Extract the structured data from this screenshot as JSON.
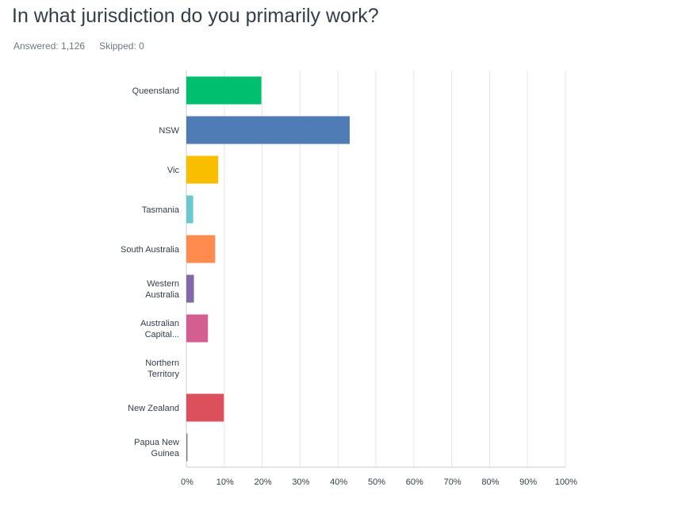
{
  "question": {
    "title": "In what jurisdiction do you primarily work?",
    "answered_label": "Answered: 1,126",
    "skipped_label": "Skipped: 0"
  },
  "chart_data": {
    "type": "bar",
    "orientation": "horizontal",
    "title": "",
    "xlabel": "",
    "ylabel": "",
    "xlim": [
      0,
      100
    ],
    "grid": true,
    "categories": [
      "Queensland",
      "NSW",
      "Vic",
      "Tasmania",
      "South Australia",
      "Western Australia",
      "Australian Capital...",
      "Northern Territory",
      "New Zealand",
      "Papua New Guinea"
    ],
    "category_lines": [
      [
        "Queensland"
      ],
      [
        "NSW"
      ],
      [
        "Vic"
      ],
      [
        "Tasmania"
      ],
      [
        "South Australia"
      ],
      [
        "Western",
        "Australia"
      ],
      [
        "Australian",
        "Capital..."
      ],
      [
        "Northern",
        "Territory"
      ],
      [
        "New Zealand"
      ],
      [
        "Papua New",
        "Guinea"
      ]
    ],
    "values": [
      19.8,
      43.1,
      8.4,
      1.8,
      7.6,
      2.0,
      5.7,
      0.0,
      9.9,
      0.3
    ],
    "colors": [
      "#00bf6f",
      "#507cb6",
      "#f9be00",
      "#6bc8cd",
      "#ff8b4f",
      "#7f6aa7",
      "#d25f90",
      "#6e6e6e",
      "#dc4f5d",
      "#7d7d7d"
    ],
    "xticks": [
      "0%",
      "10%",
      "20%",
      "30%",
      "40%",
      "50%",
      "60%",
      "70%",
      "80%",
      "90%",
      "100%"
    ]
  }
}
